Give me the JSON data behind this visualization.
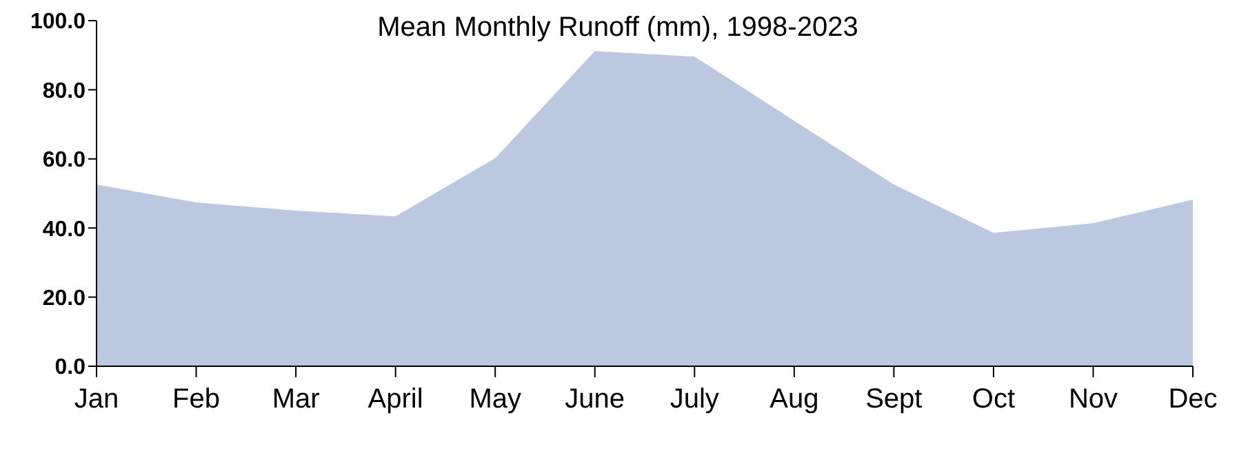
{
  "chart_data": {
    "type": "area",
    "title": "Mean Monthly Runoff (mm), 1998-2023",
    "categories": [
      "Jan",
      "Feb",
      "Mar",
      "April",
      "May",
      "June",
      "July",
      "Aug",
      "Sept",
      "Oct",
      "Nov",
      "Dec"
    ],
    "series": [
      {
        "color": "#bcc8e0",
        "values": [
          52.6,
          47.4,
          45.0,
          43.4,
          60.2,
          91.2,
          89.6,
          71.0,
          52.6,
          38.6,
          41.4,
          48.2
        ]
      }
    ],
    "ylim": [
      0,
      100
    ],
    "yticks": [
      {
        "value": 0,
        "label": "0.0"
      },
      {
        "value": 20,
        "label": "20.0"
      },
      {
        "value": 40,
        "label": "40.0"
      },
      {
        "value": 60,
        "label": "60.0"
      },
      {
        "value": 80,
        "label": "80.0"
      },
      {
        "value": 100,
        "label": "100.0"
      }
    ],
    "grid": false,
    "legend": false
  }
}
